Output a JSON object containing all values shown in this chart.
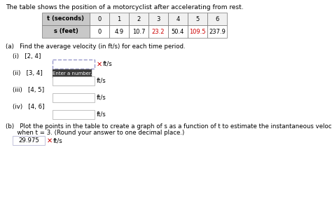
{
  "title": "The table shows the position of a motorcyclist after accelerating from rest.",
  "table_t_label": "t (seconds)",
  "table_s_label": "s (feet)",
  "t_values": [
    0,
    1,
    2,
    3,
    4,
    5,
    6
  ],
  "s_values": [
    "0",
    "4.9",
    "10.7",
    "23.2",
    "50.4",
    "109.5",
    "237.9"
  ],
  "red_values": [
    "23.2",
    "109.5"
  ],
  "part_a_label": "(a)   Find the average velocity (in ft/s) for each time period.",
  "sub_labels": [
    "(i)   [2, 4]",
    "(ii)   [3, 4]",
    "(iii)   [4, 5]",
    "(iv)   [4, 6]"
  ],
  "fts_label": "ft/s",
  "part_b_line1": "(b)   Plot the points in the table to create a graph of s as a function of t to estimate the instantaneous velocity (in ft/s)",
  "part_b_line2": "      when t = 3. (Round your answer to one decimal place.)",
  "answer_b": "29.975",
  "bg_color": "#ffffff",
  "table_header_bg": "#c8c8c8",
  "table_data_bg": "#ffffff",
  "table_border_color": "#777777",
  "input_box_border": "#aaaaaa",
  "input_box_bg": "#ffffff",
  "error_x_color": "#cc0000",
  "tooltip_bg": "#3a3a3a",
  "tooltip_text_color": "#ffffff",
  "tooltip_label": "Enter a number.",
  "dashed_box_color": "#9999cc",
  "normal_text": "#000000",
  "title_fontsize": 6.5,
  "body_fontsize": 6.2,
  "table_fontsize": 6.0
}
